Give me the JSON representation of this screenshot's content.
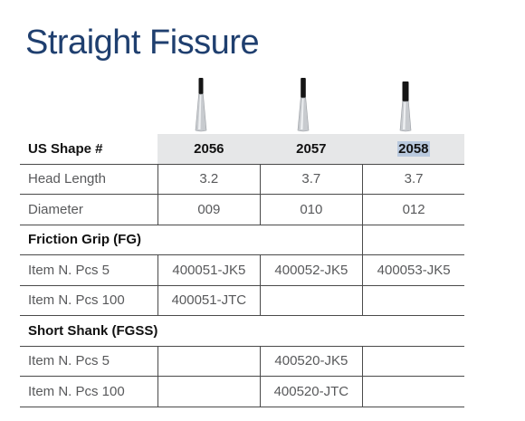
{
  "title": "Straight Fissure",
  "table": {
    "header": {
      "label": "US Shape #",
      "columns": [
        "2056",
        "2057",
        "2058"
      ]
    },
    "rows": [
      {
        "label": "Head Length",
        "values": [
          "3.2",
          "3.7",
          "3.7"
        ]
      },
      {
        "label": "Diameter",
        "values": [
          "009",
          "010",
          "012"
        ]
      }
    ],
    "sections": [
      {
        "title": "Friction Grip (FG)",
        "rows": [
          {
            "label": "Item N. Pcs 5",
            "values": [
              "400051-JK5",
              "400052-JK5",
              "400053-JK5"
            ]
          },
          {
            "label": "Item N. Pcs 100",
            "values": [
              "400051-JTC",
              "",
              ""
            ]
          }
        ]
      },
      {
        "title": "Short Shank (FGSS)",
        "rows": [
          {
            "label": "Item N. Pcs 5",
            "values": [
              "",
              "400520-JK5",
              ""
            ]
          },
          {
            "label": "Item N. Pcs 100",
            "values": [
              "",
              "400520-JTC",
              ""
            ]
          }
        ]
      }
    ]
  },
  "colors": {
    "title": "#1f3f6f",
    "header_bg": "#e6e7e8",
    "selection": "#b9c9de",
    "text": "#58595b"
  }
}
